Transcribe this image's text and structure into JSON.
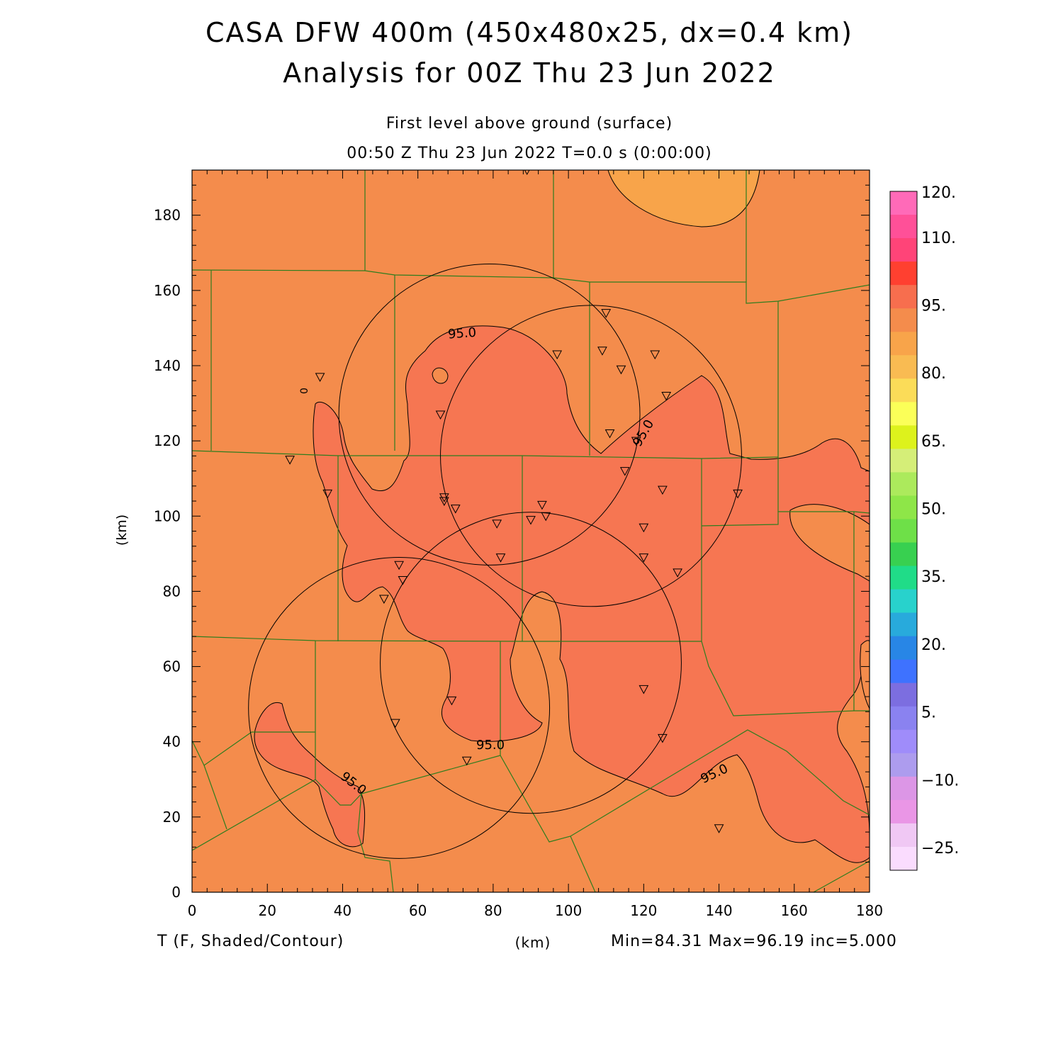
{
  "header": {
    "title_line1": "CASA DFW 400m (450x480x25, dx=0.4 km)",
    "title_line2": "Analysis for 00Z Thu 23 Jun 2022",
    "subtitle_line1": "First level above ground (surface)",
    "subtitle_line2": "00:50 Z Thu 23 Jun 2022    T=0.0 s (0:00:00)"
  },
  "footer": {
    "variable_label": "T (F, Shaded/Contour)",
    "x_unit": "(km)",
    "stats": "Min=84.31 Max=96.19 inc=5.000"
  },
  "axes": {
    "x_ticks": [
      "0",
      "20",
      "40",
      "60",
      "80",
      "100",
      "120",
      "140",
      "160",
      "180"
    ],
    "y_ticks": [
      "0",
      "20",
      "40",
      "60",
      "80",
      "100",
      "120",
      "140",
      "160",
      "180"
    ],
    "x_range_km": [
      0,
      180
    ],
    "y_range_km": [
      0,
      192
    ],
    "y_label": "(km)"
  },
  "contour_labels": [
    "95.0",
    "95.0",
    "95.0",
    "95.0",
    "95.0",
    "0"
  ],
  "colorbar": {
    "colors_top_to_bottom": [
      "#ff6ab8",
      "#ff5098",
      "#ff4478",
      "#ff4030",
      "#f76e4e",
      "#f48c4c",
      "#f8a44a",
      "#f9bb52",
      "#fbdc58",
      "#fbff58",
      "#ddf21c",
      "#d5ee78",
      "#acea5c",
      "#8ee648",
      "#6ee048",
      "#38d050",
      "#20dc88",
      "#28d2cc",
      "#28aadc",
      "#2886e6",
      "#3e72ff",
      "#7c6ee0",
      "#8a82f0",
      "#9f8cfa",
      "#ad9cee",
      "#dc96e6",
      "#ea96e6",
      "#f0c8f4",
      "#fadcfe"
    ],
    "labels": [
      {
        "text": "120.",
        "level": 120
      },
      {
        "text": "110.",
        "level": 110
      },
      {
        "text": "95.",
        "level": 95
      },
      {
        "text": "80.",
        "level": 80
      },
      {
        "text": "65.",
        "level": 65
      },
      {
        "text": "50.",
        "level": 50
      },
      {
        "text": "35.",
        "level": 35
      },
      {
        "text": "20.",
        "level": 20
      },
      {
        "text": "5.",
        "level": 5
      },
      {
        "text": "−10.",
        "level": -10
      },
      {
        "text": "−25.",
        "level": -25
      }
    ]
  },
  "field_colors": {
    "base": "#f48c4c",
    "warm": "#f67652",
    "cool": "#f8a44a"
  },
  "radars": [
    {
      "center_km": [
        106,
        116
      ],
      "radius_km": 40
    },
    {
      "center_km": [
        79,
        127
      ],
      "radius_km": 40
    },
    {
      "center_km": [
        90,
        61
      ],
      "radius_km": 40
    },
    {
      "center_km": [
        55,
        49
      ],
      "radius_km": 40
    }
  ],
  "stations_km": [
    [
      89,
      192
    ],
    [
      110,
      154
    ],
    [
      97,
      143
    ],
    [
      109,
      144
    ],
    [
      123,
      143
    ],
    [
      114,
      139
    ],
    [
      126,
      132
    ],
    [
      34,
      137
    ],
    [
      66,
      127
    ],
    [
      111,
      122
    ],
    [
      118,
      120
    ],
    [
      26,
      115
    ],
    [
      115,
      112
    ],
    [
      125,
      107
    ],
    [
      36,
      106
    ],
    [
      67,
      105
    ],
    [
      67,
      104
    ],
    [
      70,
      102
    ],
    [
      93,
      103
    ],
    [
      94,
      100
    ],
    [
      90,
      99
    ],
    [
      81,
      98
    ],
    [
      120,
      97
    ],
    [
      145,
      106
    ],
    [
      120,
      89
    ],
    [
      82,
      89
    ],
    [
      129,
      85
    ],
    [
      55,
      87
    ],
    [
      56,
      83
    ],
    [
      51,
      78
    ],
    [
      120,
      54
    ],
    [
      69,
      51
    ],
    [
      54,
      45
    ],
    [
      125,
      41
    ],
    [
      73,
      35
    ],
    [
      140,
      17
    ]
  ]
}
